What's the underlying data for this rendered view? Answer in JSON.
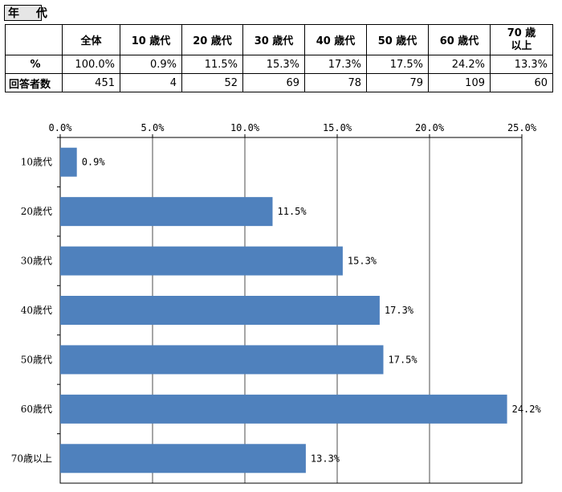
{
  "section_title": "年 代",
  "table": {
    "columns": [
      "全体",
      "10 歳代",
      "20 歳代",
      "30 歳代",
      "40 歳代",
      "50 歳代",
      "60 歳代",
      "70 歳\n以上"
    ],
    "rows": [
      {
        "label": "%",
        "values": [
          "100.0%",
          "0.9%",
          "11.5%",
          "15.3%",
          "17.3%",
          "17.5%",
          "24.2%",
          "13.3%"
        ]
      },
      {
        "label": "回答者数",
        "values": [
          "451",
          "4",
          "52",
          "69",
          "78",
          "79",
          "109",
          "60"
        ]
      }
    ]
  },
  "chart_data": {
    "type": "bar",
    "orientation": "horizontal",
    "categories": [
      "10歳代",
      "20歳代",
      "30歳代",
      "40歳代",
      "50歳代",
      "60歳代",
      "70歳以上"
    ],
    "values": [
      0.9,
      11.5,
      15.3,
      17.3,
      17.5,
      24.2,
      13.3
    ],
    "data_labels": [
      "0.9%",
      "11.5%",
      "15.3%",
      "17.3%",
      "17.5%",
      "24.2%",
      "13.3%"
    ],
    "xlim": [
      0,
      25
    ],
    "x_ticks": [
      0,
      5,
      10,
      15,
      20,
      25
    ],
    "x_tick_labels": [
      "0.0%",
      "5.0%",
      "10.0%",
      "15.0%",
      "20.0%",
      "25.0%"
    ],
    "axis_position": "top",
    "grid": true,
    "bar_color": "#4f81bd"
  }
}
